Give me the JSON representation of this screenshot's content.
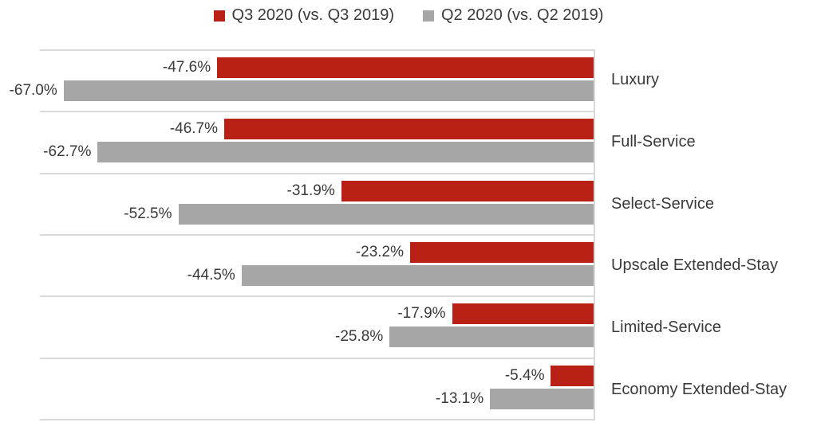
{
  "chart_data": {
    "type": "bar",
    "orientation": "horizontal",
    "title": "",
    "xlabel": "",
    "ylabel": "",
    "categories": [
      "Luxury",
      "Full-Service",
      "Select-Service",
      "Upscale Extended-Stay",
      "Limited-Service",
      "Economy Extended-Stay"
    ],
    "series": [
      {
        "name": "Q3 2020 (vs. Q3 2019)",
        "color": "#b92116",
        "values": [
          -47.6,
          -46.7,
          -31.9,
          -23.2,
          -17.9,
          -5.4
        ],
        "data_labels": [
          "-47.6%",
          "-46.7%",
          "-31.9%",
          "-23.2%",
          "-17.9%",
          "-5.4%"
        ]
      },
      {
        "name": "Q2 2020 (vs. Q2 2019)",
        "color": "#a6a6a6",
        "values": [
          -67.0,
          -62.7,
          -52.5,
          -44.5,
          -25.8,
          -13.1
        ],
        "data_labels": [
          "-67.0%",
          "-62.7%",
          "-52.5%",
          "-44.5%",
          "-25.8%",
          "-13.1%"
        ]
      }
    ],
    "xlim": [
      -70,
      0
    ],
    "legend_position": "top-center",
    "grid": "category-separator-lines",
    "gridline_color": "#d9d9d9",
    "axis_line_color": "#d9d9d9",
    "text_color": "#3a3a3a"
  }
}
